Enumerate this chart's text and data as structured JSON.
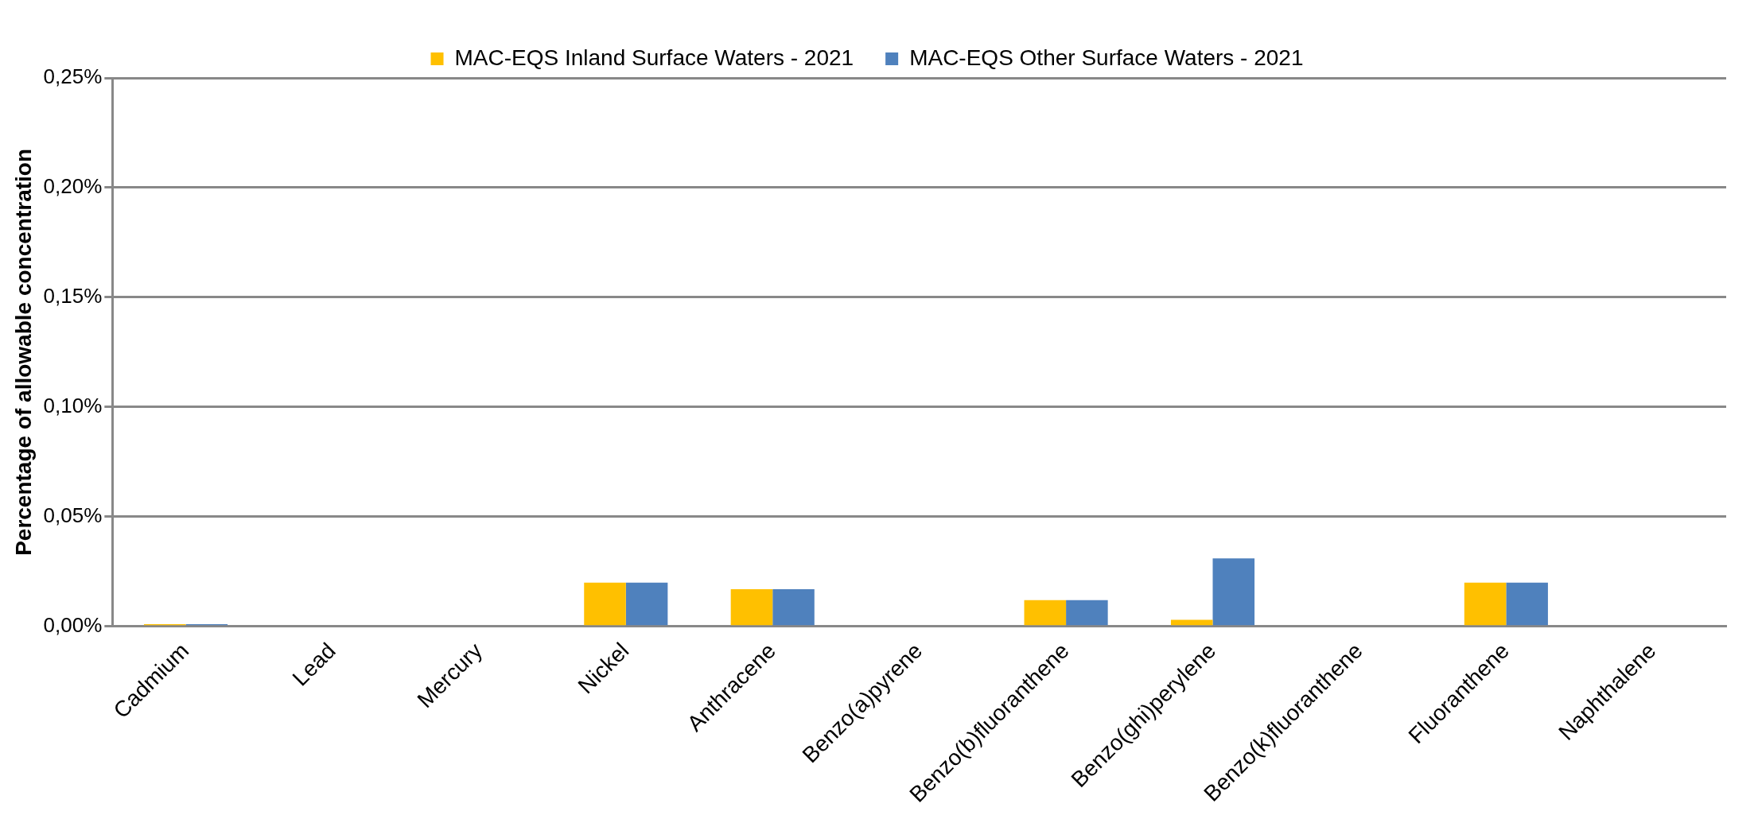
{
  "chart_data": {
    "type": "bar",
    "ylabel": "Percentage of allowable concentration",
    "categories": [
      "Cadmium",
      "Lead",
      "Mercury",
      "Nickel",
      "Anthracene",
      "Benzo(a)pyrene",
      "Benzo(b)fluoranthene",
      "Benzo(ghi)perylene",
      "Benzo(k)fluoranthene",
      "Fluoranthene",
      "Naphthalene"
    ],
    "series": [
      {
        "name": "MAC-EQS Inland Surface Waters - 2021",
        "color": "#ffc000",
        "values": [
          0.001,
          0,
          0,
          0.02,
          0.017,
          0,
          0.012,
          0.003,
          0,
          0.02,
          0
        ]
      },
      {
        "name": "MAC-EQS Other Surface Waters - 2021",
        "color": "#4f81bd",
        "values": [
          0.001,
          0,
          0,
          0.02,
          0.017,
          0,
          0.012,
          0.031,
          0,
          0.02,
          0
        ]
      }
    ],
    "ylim": [
      0,
      0.25
    ],
    "yticks": [
      {
        "value": 0,
        "label": "0,00%"
      },
      {
        "value": 0.05,
        "label": "0,05%"
      },
      {
        "value": 0.1,
        "label": "0,10%"
      },
      {
        "value": 0.15,
        "label": "0,15%"
      },
      {
        "value": 0.2,
        "label": "0,20%"
      },
      {
        "value": 0.25,
        "label": "0,25%"
      }
    ],
    "grid": "y",
    "legend": "top"
  }
}
